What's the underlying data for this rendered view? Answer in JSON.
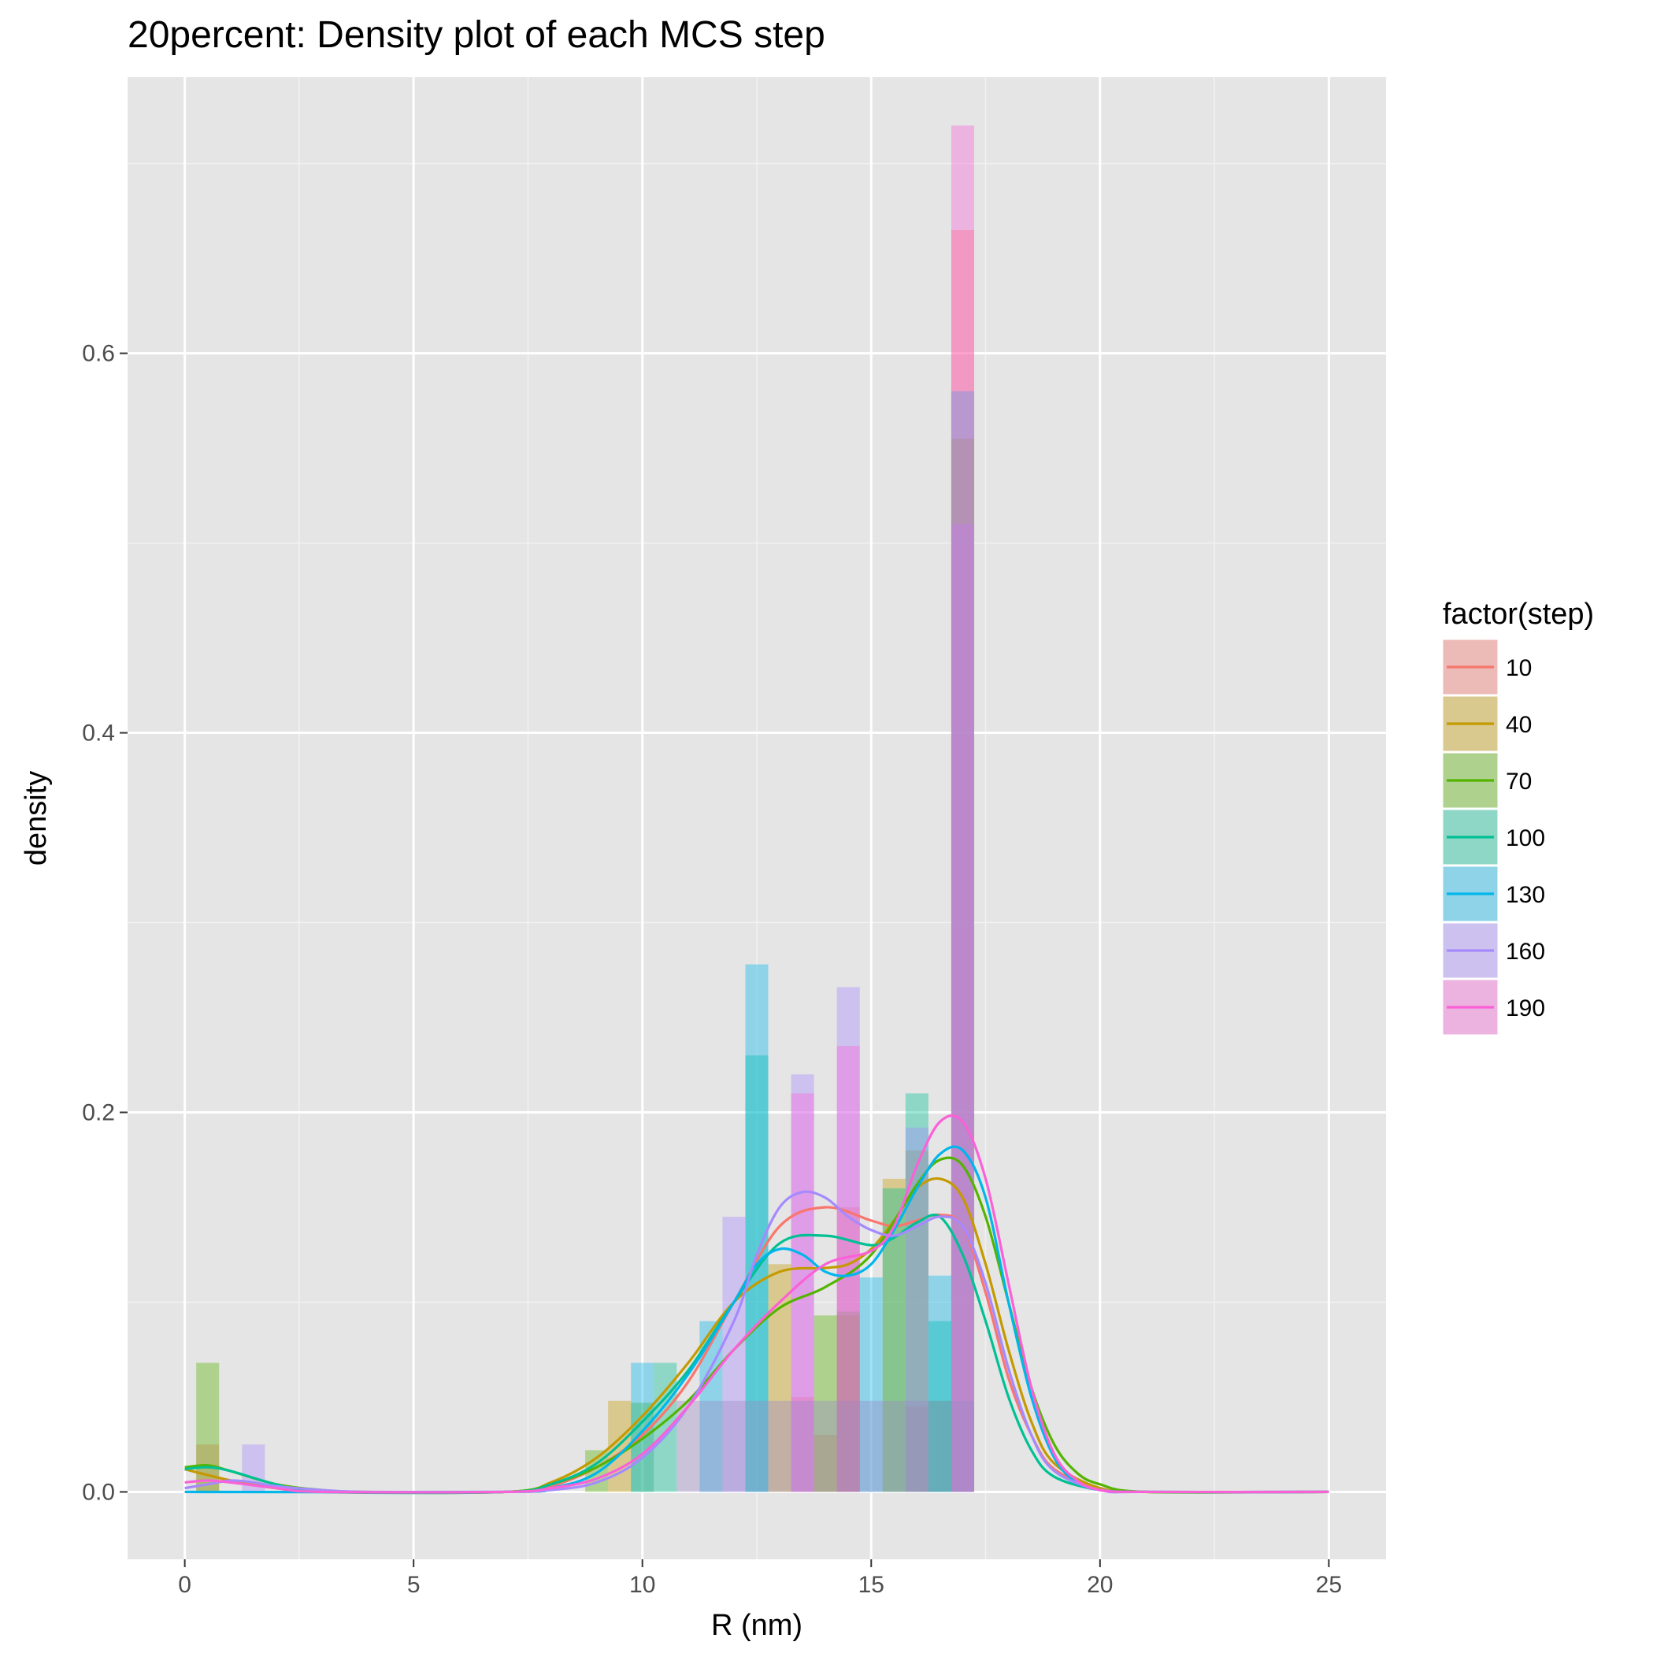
{
  "chart_data": {
    "type": "histogram-density",
    "title": "20percent: Density plot of each MCS step",
    "xlabel": "R (nm)",
    "ylabel": "density",
    "xlim": [
      -1.25,
      26.25
    ],
    "ylim": [
      -0.0355,
      0.7455
    ],
    "x_ticks": [
      0,
      5,
      10,
      15,
      20,
      25
    ],
    "x_tick_labels": [
      "0",
      "5",
      "10",
      "15",
      "20",
      "25"
    ],
    "y_ticks": [
      0.0,
      0.2,
      0.4,
      0.6
    ],
    "y_tick_labels": [
      "0.0",
      "0.2",
      "0.4",
      "0.6"
    ],
    "x_minor": [
      2.5,
      7.5,
      12.5,
      17.5,
      22.5
    ],
    "y_minor": [
      0.1,
      0.3,
      0.5,
      0.7
    ],
    "grid": true,
    "panel_background": "#e5e5e5",
    "legend_position": "right",
    "legend_title": "factor(step)",
    "bin_width": 0.5,
    "series": [
      {
        "name": "10",
        "color": "#F8766D",
        "bins": [
          [
            0.5,
            0.025
          ],
          [
            13.5,
            0.05
          ],
          [
            14.0,
            0.03
          ],
          [
            14.5,
            0.15
          ],
          [
            16.0,
            0.045
          ],
          [
            17.0,
            0.665
          ]
        ],
        "density": [
          [
            0,
            0.012
          ],
          [
            1,
            0.006
          ],
          [
            2,
            0.002
          ],
          [
            3,
            0
          ],
          [
            7,
            0
          ],
          [
            8,
            0.003
          ],
          [
            9,
            0.013
          ],
          [
            10,
            0.03
          ],
          [
            11,
            0.058
          ],
          [
            12,
            0.1
          ],
          [
            13,
            0.14
          ],
          [
            14,
            0.15
          ],
          [
            15,
            0.143
          ],
          [
            15.5,
            0.14
          ],
          [
            16,
            0.143
          ],
          [
            16.5,
            0.146
          ],
          [
            17,
            0.14
          ],
          [
            17.5,
            0.105
          ],
          [
            18,
            0.06
          ],
          [
            18.5,
            0.03
          ],
          [
            19,
            0.012
          ],
          [
            20,
            0.002
          ],
          [
            21,
            0
          ],
          [
            25,
            0
          ]
        ]
      },
      {
        "name": "40",
        "color": "#C49A00",
        "bins": [
          [
            9.5,
            0.048
          ],
          [
            13.0,
            0.12
          ],
          [
            14.5,
            0.093
          ],
          [
            15.5,
            0.165
          ],
          [
            16.0,
            0.18
          ],
          [
            17.0,
            0.555
          ]
        ],
        "density": [
          [
            0,
            0.012
          ],
          [
            1,
            0.006
          ],
          [
            2,
            0.002
          ],
          [
            3,
            0
          ],
          [
            7,
            0
          ],
          [
            8,
            0.005
          ],
          [
            9,
            0.018
          ],
          [
            10,
            0.04
          ],
          [
            11,
            0.068
          ],
          [
            12,
            0.1
          ],
          [
            13,
            0.116
          ],
          [
            14,
            0.118
          ],
          [
            14.5,
            0.12
          ],
          [
            15,
            0.128
          ],
          [
            15.5,
            0.143
          ],
          [
            16,
            0.16
          ],
          [
            16.5,
            0.165
          ],
          [
            17,
            0.155
          ],
          [
            17.5,
            0.12
          ],
          [
            18,
            0.075
          ],
          [
            18.5,
            0.037
          ],
          [
            19,
            0.015
          ],
          [
            20,
            0.002
          ],
          [
            21,
            0
          ],
          [
            25,
            0
          ]
        ]
      },
      {
        "name": "70",
        "color": "#53B400",
        "bins": [
          [
            0.5,
            0.068
          ],
          [
            9.0,
            0.022
          ],
          [
            10.0,
            0.047
          ],
          [
            14.0,
            0.093
          ],
          [
            14.5,
            0.095
          ],
          [
            16.5,
            0.048
          ]
        ],
        "density": [
          [
            0,
            0.013
          ],
          [
            0.5,
            0.014
          ],
          [
            1,
            0.011
          ],
          [
            2,
            0.004
          ],
          [
            3,
            0.001
          ],
          [
            4,
            0
          ],
          [
            7,
            0
          ],
          [
            8,
            0.004
          ],
          [
            9,
            0.013
          ],
          [
            10,
            0.028
          ],
          [
            11,
            0.048
          ],
          [
            12,
            0.075
          ],
          [
            13,
            0.097
          ],
          [
            14,
            0.108
          ],
          [
            15,
            0.125
          ],
          [
            16,
            0.162
          ],
          [
            16.5,
            0.175
          ],
          [
            17,
            0.172
          ],
          [
            17.5,
            0.145
          ],
          [
            18,
            0.1
          ],
          [
            18.5,
            0.055
          ],
          [
            19,
            0.025
          ],
          [
            19.5,
            0.01
          ],
          [
            20,
            0.004
          ],
          [
            21,
            0
          ],
          [
            25,
            0
          ]
        ]
      },
      {
        "name": "100",
        "color": "#00C094",
        "bins": [
          [
            10.5,
            0.068
          ],
          [
            12.5,
            0.23
          ],
          [
            15.5,
            0.16
          ],
          [
            16.0,
            0.21
          ],
          [
            16.5,
            0.09
          ]
        ],
        "density": [
          [
            0,
            0.012
          ],
          [
            0.5,
            0.013
          ],
          [
            1,
            0.011
          ],
          [
            2,
            0.004
          ],
          [
            3,
            0
          ],
          [
            7,
            0
          ],
          [
            8,
            0.004
          ],
          [
            9,
            0.015
          ],
          [
            10,
            0.037
          ],
          [
            11,
            0.064
          ],
          [
            12,
            0.1
          ],
          [
            13,
            0.131
          ],
          [
            14,
            0.135
          ],
          [
            15,
            0.13
          ],
          [
            15.5,
            0.134
          ],
          [
            16,
            0.142
          ],
          [
            16.5,
            0.145
          ],
          [
            17,
            0.125
          ],
          [
            17.5,
            0.09
          ],
          [
            18,
            0.05
          ],
          [
            18.5,
            0.022
          ],
          [
            19,
            0.008
          ],
          [
            20,
            0.001
          ],
          [
            21,
            0
          ],
          [
            25,
            0
          ]
        ]
      },
      {
        "name": "130",
        "color": "#00B6EB",
        "bins": [
          [
            10.0,
            0.068
          ],
          [
            11.5,
            0.09
          ],
          [
            12.5,
            0.278
          ],
          [
            15.0,
            0.113
          ],
          [
            16.5,
            0.114
          ],
          [
            17.0,
            0.58
          ]
        ],
        "density": [
          [
            0,
            0
          ],
          [
            7,
            0
          ],
          [
            8,
            0.002
          ],
          [
            9,
            0.01
          ],
          [
            10,
            0.032
          ],
          [
            11,
            0.062
          ],
          [
            12,
            0.1
          ],
          [
            12.5,
            0.12
          ],
          [
            13,
            0.128
          ],
          [
            13.5,
            0.125
          ],
          [
            14,
            0.116
          ],
          [
            14.5,
            0.114
          ],
          [
            15,
            0.12
          ],
          [
            15.5,
            0.138
          ],
          [
            16,
            0.16
          ],
          [
            16.5,
            0.178
          ],
          [
            17,
            0.18
          ],
          [
            17.5,
            0.155
          ],
          [
            18,
            0.1
          ],
          [
            18.5,
            0.05
          ],
          [
            19,
            0.018
          ],
          [
            19.5,
            0.005
          ],
          [
            20,
            0.001
          ],
          [
            21,
            0
          ],
          [
            25,
            0
          ]
        ]
      },
      {
        "name": "160",
        "color": "#A58AFF",
        "bins": [
          [
            1.5,
            0.025
          ],
          [
            12.0,
            0.145
          ],
          [
            13.5,
            0.22
          ],
          [
            14.5,
            0.266
          ],
          [
            16.0,
            0.192
          ],
          [
            17.0,
            0.51
          ]
        ],
        "density": [
          [
            0,
            0.002
          ],
          [
            0.5,
            0.004
          ],
          [
            1,
            0.006
          ],
          [
            1.5,
            0.005
          ],
          [
            2,
            0.003
          ],
          [
            3,
            0.001
          ],
          [
            4,
            0
          ],
          [
            7,
            0
          ],
          [
            8,
            0.001
          ],
          [
            9,
            0.005
          ],
          [
            10,
            0.018
          ],
          [
            11,
            0.045
          ],
          [
            12,
            0.09
          ],
          [
            12.5,
            0.125
          ],
          [
            13,
            0.15
          ],
          [
            13.5,
            0.158
          ],
          [
            14,
            0.155
          ],
          [
            14.5,
            0.145
          ],
          [
            15,
            0.138
          ],
          [
            15.5,
            0.135
          ],
          [
            16,
            0.14
          ],
          [
            16.5,
            0.145
          ],
          [
            17,
            0.14
          ],
          [
            17.5,
            0.11
          ],
          [
            18,
            0.065
          ],
          [
            18.5,
            0.03
          ],
          [
            19,
            0.011
          ],
          [
            20,
            0.001
          ],
          [
            21,
            0
          ],
          [
            25,
            0
          ]
        ]
      },
      {
        "name": "190",
        "color": "#FB61D7",
        "bins": [
          [
            13.5,
            0.21
          ],
          [
            14.5,
            0.235
          ],
          [
            17.0,
            0.72
          ]
        ],
        "density": [
          [
            0,
            0.005
          ],
          [
            0.5,
            0.006
          ],
          [
            1,
            0.005
          ],
          [
            2,
            0.002
          ],
          [
            3,
            0
          ],
          [
            7,
            0
          ],
          [
            8,
            0.002
          ],
          [
            9,
            0.007
          ],
          [
            10,
            0.02
          ],
          [
            11,
            0.045
          ],
          [
            12,
            0.075
          ],
          [
            13,
            0.1
          ],
          [
            14,
            0.12
          ],
          [
            15,
            0.127
          ],
          [
            15.5,
            0.14
          ],
          [
            16,
            0.172
          ],
          [
            16.5,
            0.195
          ],
          [
            17,
            0.195
          ],
          [
            17.5,
            0.165
          ],
          [
            18,
            0.11
          ],
          [
            18.5,
            0.055
          ],
          [
            19,
            0.02
          ],
          [
            19.5,
            0.006
          ],
          [
            20,
            0.001
          ],
          [
            21,
            0
          ],
          [
            25,
            0
          ]
        ]
      }
    ],
    "common_bins": {
      "height": 0.048,
      "color": "#9a88c4",
      "x": [
        11.0,
        11.5,
        12.0,
        12.5,
        13.0,
        13.5,
        14.0,
        14.5,
        15.0,
        15.5,
        16.0,
        16.5,
        17.0
      ]
    }
  }
}
